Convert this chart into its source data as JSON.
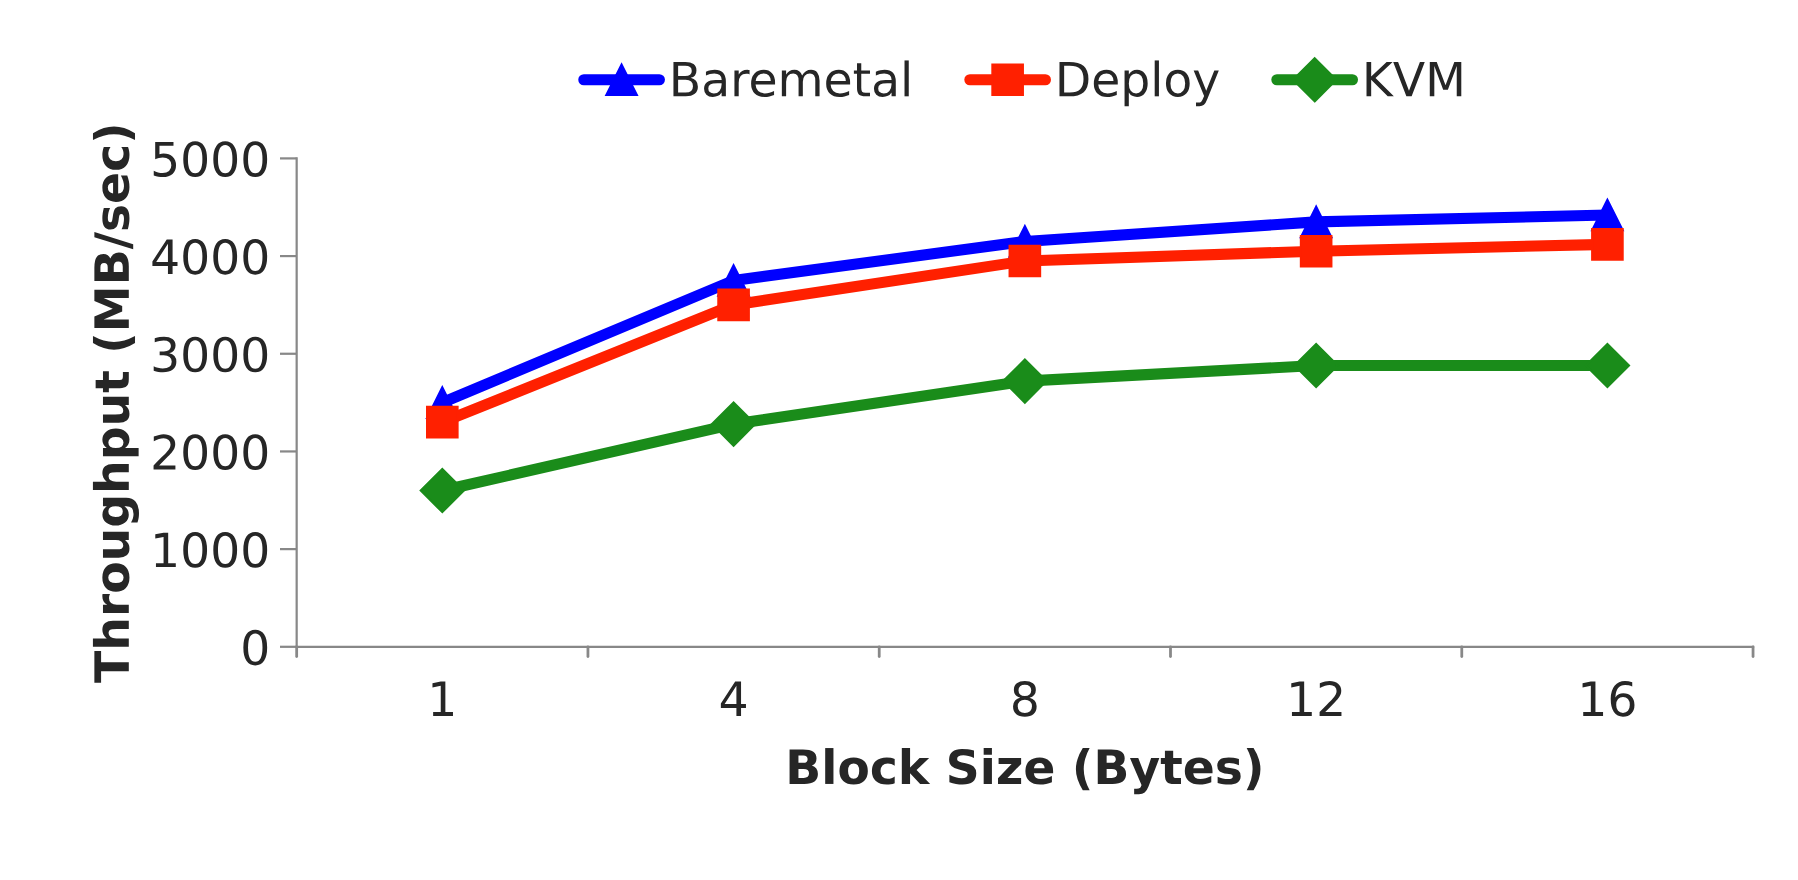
{
  "chart_data": {
    "type": "line",
    "xlabel": "Block Size (Bytes)",
    "ylabel": "Throughput (MB/sec)",
    "categories": [
      "1",
      "4",
      "8",
      "12",
      "16"
    ],
    "series": [
      {
        "name": "Baremetal",
        "color": "#0000ff",
        "marker": "triangle",
        "values": [
          2500,
          3750,
          4150,
          4350,
          4420
        ]
      },
      {
        "name": "Deploy",
        "color": "#ff2000",
        "marker": "square",
        "values": [
          2300,
          3500,
          3950,
          4050,
          4120
        ]
      },
      {
        "name": "KVM",
        "color": "#1a8c1a",
        "marker": "diamond",
        "values": [
          1600,
          2280,
          2720,
          2880,
          2880
        ]
      }
    ],
    "ylim": [
      0,
      5000
    ],
    "yticks": [
      0,
      1000,
      2000,
      3000,
      4000,
      5000
    ],
    "grid": false,
    "legend": "top",
    "line_style": "solid"
  }
}
